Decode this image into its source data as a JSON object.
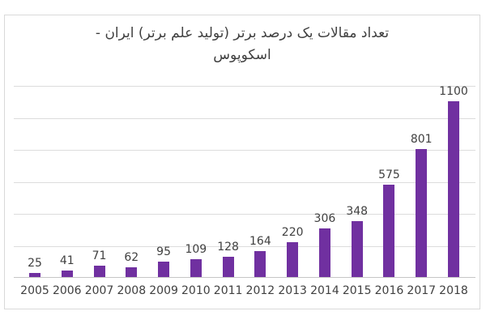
{
  "chart_data": {
    "type": "bar",
    "title": "تعداد مقالات یک درصد برتر (تولید علم برتر) ایران - اسکوپوس",
    "title_lines": [
      "تعداد مقالات یک درصد برتر (تولید علم برتر) ایران -",
      "اسکوپوس"
    ],
    "categories": [
      "2005",
      "2006",
      "2007",
      "2008",
      "2009",
      "2010",
      "2011",
      "2012",
      "2013",
      "2014",
      "2015",
      "2016",
      "2017",
      "2018"
    ],
    "values": [
      25,
      41,
      71,
      62,
      95,
      109,
      128,
      164,
      220,
      306,
      348,
      575,
      801,
      1100
    ],
    "data_labels_shown": true,
    "xlabel": "",
    "ylabel": "",
    "y_axis_labels_shown": false,
    "ylim": [
      0,
      1200
    ],
    "gridline_step": 200,
    "grid": true,
    "legend_position": "none",
    "bar_color": "#7030a0",
    "label_color": "#404040",
    "title_color": "#3f3f3f",
    "gridline_color": "#dcdcdc",
    "frame_border_color": "#d9d9d9",
    "text_direction": "rtl"
  }
}
